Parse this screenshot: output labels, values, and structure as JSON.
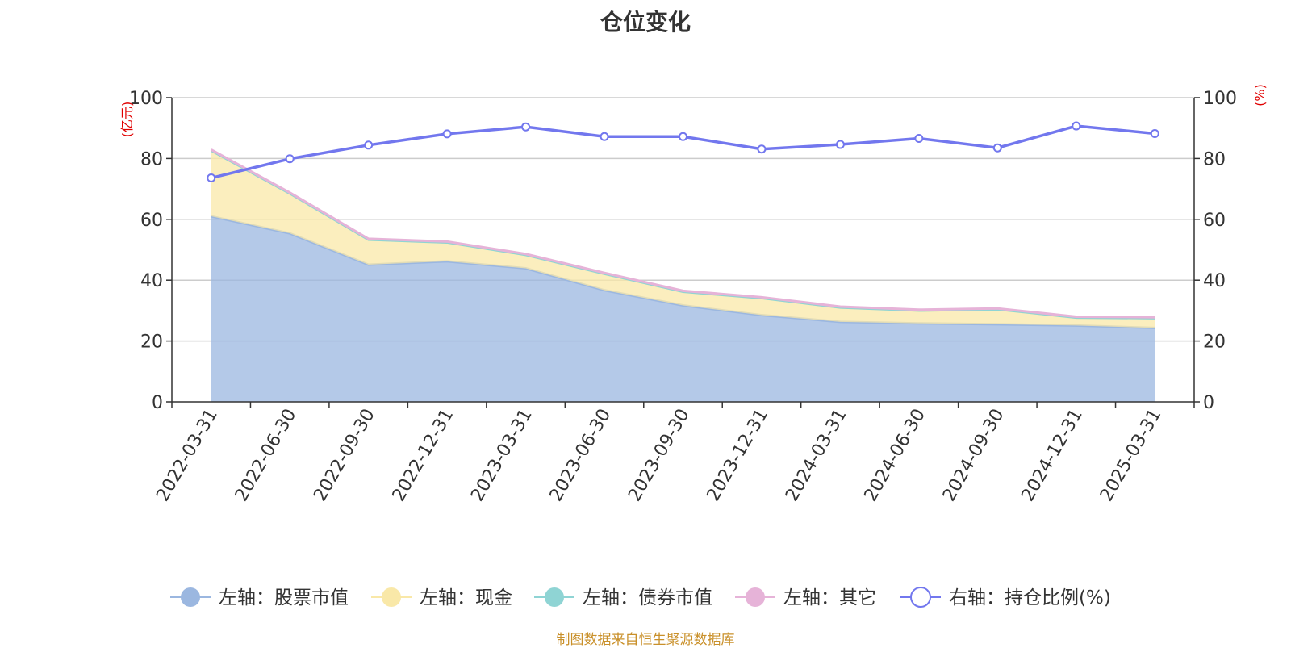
{
  "title": "仓位变化",
  "source": "制图数据来自恒生聚源数据库",
  "chart_data": {
    "type": "area",
    "title": "仓位变化",
    "categories": [
      "2022-03-31",
      "2022-06-30",
      "2022-09-30",
      "2022-12-31",
      "2023-03-31",
      "2023-06-30",
      "2023-09-30",
      "2023-12-31",
      "2024-03-31",
      "2024-06-30",
      "2024-09-30",
      "2024-12-31",
      "2025-03-31"
    ],
    "left_axis": {
      "unit_label": "(亿元)",
      "ylim": [
        0,
        100
      ],
      "ticks": [
        "0",
        "20",
        "40",
        "60",
        "80",
        "100"
      ]
    },
    "right_axis": {
      "unit_label": "(%)",
      "ylim": [
        0,
        100
      ],
      "ticks": [
        "0",
        "20",
        "40",
        "60",
        "80",
        "100"
      ]
    },
    "grid": true,
    "legend_position": "bottom",
    "series": [
      {
        "name": "左轴：股票市值",
        "axis": "left",
        "type": "stacked-area",
        "color": "#9bb7e0",
        "values": [
          61.0,
          55.4,
          45.1,
          46.2,
          43.9,
          36.7,
          31.7,
          28.5,
          26.3,
          25.8,
          25.5,
          25.1,
          24.3
        ]
      },
      {
        "name": "左轴：现金",
        "axis": "left",
        "type": "stacked-area",
        "color": "#f9e8a8",
        "values": [
          21.6,
          13.1,
          8.2,
          6.2,
          4.4,
          5.4,
          4.5,
          5.6,
          4.7,
          4.2,
          4.9,
          2.6,
          3.2
        ]
      },
      {
        "name": "左轴：债券市值",
        "axis": "left",
        "type": "stacked-area",
        "color": "#8fd4d4",
        "values": [
          0,
          0,
          0,
          0,
          0,
          0,
          0,
          0,
          0,
          0,
          0,
          0,
          0
        ]
      },
      {
        "name": "左轴：其它",
        "axis": "left",
        "type": "stacked-area",
        "color": "#e6b3d8",
        "values": [
          0.3,
          0.3,
          0.3,
          0.3,
          0.3,
          0.3,
          0.3,
          0.3,
          0.3,
          0.3,
          0.3,
          0.3,
          0.3
        ]
      },
      {
        "name": "右轴：持仓比例(%)",
        "axis": "right",
        "type": "line",
        "color": "#7277ee",
        "values": [
          73.6,
          79.9,
          84.4,
          88.1,
          90.4,
          87.2,
          87.2,
          83.1,
          84.6,
          86.6,
          83.5,
          90.7,
          88.2
        ]
      }
    ]
  }
}
